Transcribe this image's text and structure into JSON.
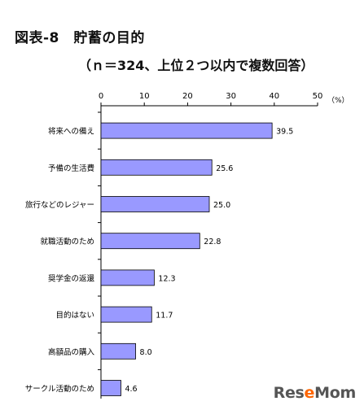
{
  "chart_data": {
    "type": "bar",
    "orientation": "horizontal",
    "title": "図表-8　貯蓄の目的",
    "subtitle": "（ｎ＝324、上位２つ以内で複数回答）",
    "unit_label": "（%）",
    "xlim": [
      0,
      50
    ],
    "ticks": [
      0,
      10,
      20,
      30,
      40,
      50
    ],
    "categories": [
      "将来への備え",
      "予備の生活費",
      "旅行などのレジャー",
      "就職活動のため",
      "奨学金の返還",
      "目的はない",
      "高額品の購入",
      "サークル活動のため"
    ],
    "values": [
      39.5,
      25.6,
      25.0,
      22.8,
      12.3,
      11.7,
      8.0,
      4.6
    ],
    "value_labels": [
      "39.5",
      "25.6",
      "25.0",
      "22.8",
      "12.3",
      "11.7",
      "8.0",
      "4.6"
    ],
    "bar_color": "#9999ff",
    "grid": false
  },
  "watermark": {
    "text": "ReseMom"
  }
}
